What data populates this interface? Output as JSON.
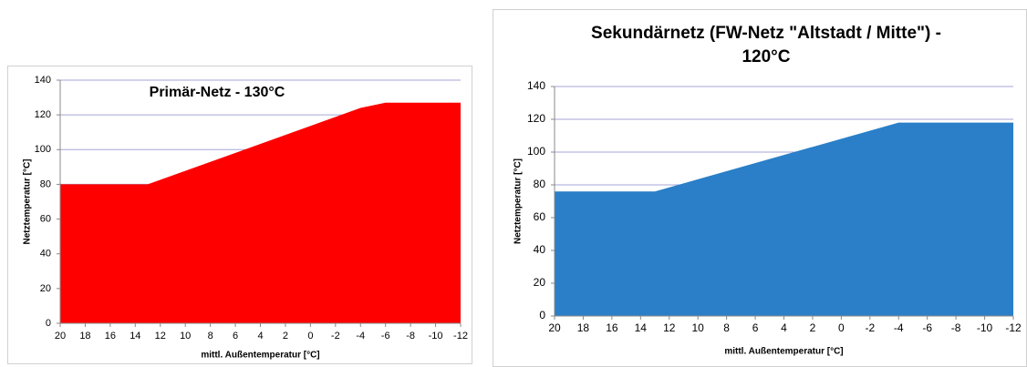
{
  "chart_data": [
    {
      "type": "area",
      "title": "Primär-Netz - 130°C",
      "xlabel": "mittl. Außentemperatur [°C]",
      "ylabel": "Netztemperatur [°C]",
      "x": [
        20,
        13,
        -4,
        -6,
        -12
      ],
      "values": [
        80,
        80,
        124,
        127,
        127
      ],
      "color": "#ff0000",
      "xlim": [
        20,
        -12
      ],
      "xticks": [
        20,
        18,
        16,
        14,
        12,
        10,
        8,
        6,
        4,
        2,
        0,
        -2,
        -4,
        -6,
        -8,
        -10,
        -12
      ],
      "ylim": [
        0,
        140
      ],
      "yticks": [
        0,
        20,
        40,
        60,
        80,
        100,
        120,
        140
      ],
      "grid": true
    },
    {
      "type": "area",
      "title": [
        "Sekundärnetz (FW-Netz \"Altstadt / Mitte\") -",
        "120°C"
      ],
      "xlabel": "mittl. Außentemperatur [°C]",
      "ylabel": "Netztemperatur [°C]",
      "x": [
        20,
        13,
        -4,
        -12
      ],
      "values": [
        76,
        76,
        118,
        118
      ],
      "color": "#2a7fc8",
      "xlim": [
        20,
        -12
      ],
      "xticks": [
        20,
        18,
        16,
        14,
        12,
        10,
        8,
        6,
        4,
        2,
        0,
        -2,
        -4,
        -6,
        -8,
        -10,
        -12
      ],
      "ylim": [
        0,
        140
      ],
      "yticks": [
        0,
        20,
        40,
        60,
        80,
        100,
        120,
        140
      ],
      "grid": true
    }
  ]
}
